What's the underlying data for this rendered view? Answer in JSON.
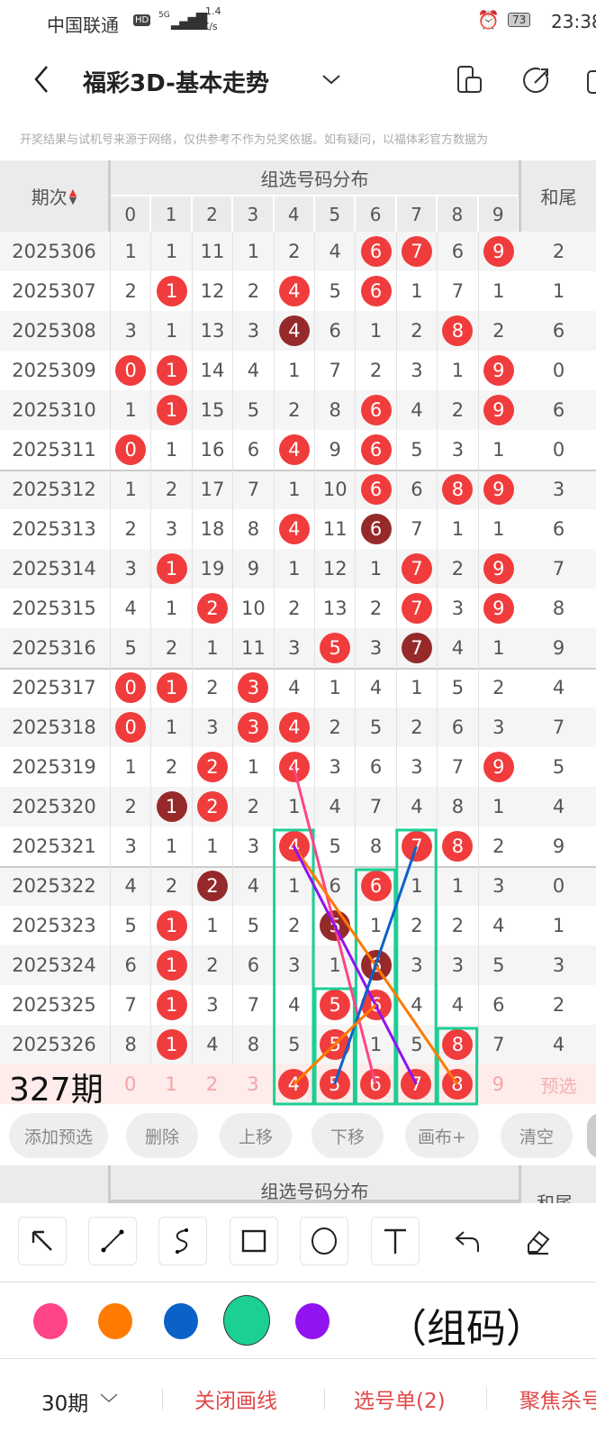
{
  "status_bar": {
    "carrier": "中国联通",
    "hd": "HD",
    "network": "5G",
    "speed": "1.4",
    "speed_unit": "K/s",
    "battery": "73",
    "time": "23:38"
  },
  "header": {
    "title": "福彩3D-基本走势"
  },
  "notice": "开奖结果与试机号来源于网络，仅供参考不作为兑奖依据。如有疑问，以福体彩官方数据为",
  "table": {
    "period_header": "期次",
    "group_header": "组选号码分布",
    "tail_header": "和尾",
    "digits": [
      "0",
      "1",
      "2",
      "3",
      "4",
      "5",
      "6",
      "7",
      "8",
      "9"
    ],
    "rows": [
      {
        "period": "2025306",
        "cells": [
          "1",
          "1",
          "11",
          "1",
          "2",
          "4",
          "6",
          "7",
          "6",
          "9"
        ],
        "marks": [
          "",
          "",
          "",
          "",
          "",
          "",
          "r",
          "r",
          "",
          "r"
        ],
        "tail": "2"
      },
      {
        "period": "2025307",
        "cells": [
          "2",
          "1",
          "12",
          "2",
          "4",
          "5",
          "6",
          "1",
          "7",
          "1"
        ],
        "marks": [
          "",
          "r",
          "",
          "",
          "r",
          "",
          "r",
          "",
          "",
          ""
        ],
        "tail": "1"
      },
      {
        "period": "2025308",
        "cells": [
          "3",
          "1",
          "13",
          "3",
          "4",
          "6",
          "1",
          "2",
          "8",
          "2"
        ],
        "marks": [
          "",
          "",
          "",
          "",
          "d",
          "",
          "",
          "",
          "r",
          ""
        ],
        "tail": "6"
      },
      {
        "period": "2025309",
        "cells": [
          "0",
          "1",
          "14",
          "4",
          "1",
          "7",
          "2",
          "3",
          "1",
          "9"
        ],
        "marks": [
          "r",
          "r",
          "",
          "",
          "",
          "",
          "",
          "",
          "",
          "r"
        ],
        "tail": "0"
      },
      {
        "period": "2025310",
        "cells": [
          "1",
          "1",
          "15",
          "5",
          "2",
          "8",
          "6",
          "4",
          "2",
          "9"
        ],
        "marks": [
          "",
          "r",
          "",
          "",
          "",
          "",
          "r",
          "",
          "",
          "r"
        ],
        "tail": "6"
      },
      {
        "period": "2025311",
        "cells": [
          "0",
          "1",
          "16",
          "6",
          "4",
          "9",
          "6",
          "5",
          "3",
          "1"
        ],
        "marks": [
          "r",
          "",
          "",
          "",
          "r",
          "",
          "r",
          "",
          "",
          ""
        ],
        "tail": "0"
      },
      {
        "period": "2025312",
        "cells": [
          "1",
          "2",
          "17",
          "7",
          "1",
          "10",
          "6",
          "6",
          "8",
          "9"
        ],
        "marks": [
          "",
          "",
          "",
          "",
          "",
          "",
          "r",
          "",
          "r",
          "r"
        ],
        "tail": "3"
      },
      {
        "period": "2025313",
        "cells": [
          "2",
          "3",
          "18",
          "8",
          "4",
          "11",
          "6",
          "7",
          "1",
          "1"
        ],
        "marks": [
          "",
          "",
          "",
          "",
          "r",
          "",
          "d",
          "",
          "",
          ""
        ],
        "tail": "6"
      },
      {
        "period": "2025314",
        "cells": [
          "3",
          "1",
          "19",
          "9",
          "1",
          "12",
          "1",
          "7",
          "2",
          "9"
        ],
        "marks": [
          "",
          "r",
          "",
          "",
          "",
          "",
          "",
          "r",
          "",
          "r"
        ],
        "tail": "7"
      },
      {
        "period": "2025315",
        "cells": [
          "4",
          "1",
          "2",
          "10",
          "2",
          "13",
          "2",
          "7",
          "3",
          "9"
        ],
        "marks": [
          "",
          "",
          "r",
          "",
          "",
          "",
          "",
          "r",
          "",
          "r"
        ],
        "tail": "8"
      },
      {
        "period": "2025316",
        "cells": [
          "5",
          "2",
          "1",
          "11",
          "3",
          "5",
          "3",
          "7",
          "4",
          "1"
        ],
        "marks": [
          "",
          "",
          "",
          "",
          "",
          "r",
          "",
          "d",
          "",
          ""
        ],
        "tail": "9"
      },
      {
        "period": "2025317",
        "cells": [
          "0",
          "1",
          "2",
          "3",
          "4",
          "1",
          "4",
          "1",
          "5",
          "2"
        ],
        "marks": [
          "r",
          "r",
          "",
          "r",
          "",
          "",
          "",
          "",
          "",
          ""
        ],
        "tail": "4"
      },
      {
        "period": "2025318",
        "cells": [
          "0",
          "1",
          "3",
          "3",
          "4",
          "2",
          "5",
          "2",
          "6",
          "3"
        ],
        "marks": [
          "r",
          "",
          "",
          "r",
          "r",
          "",
          "",
          "",
          "",
          ""
        ],
        "tail": "7"
      },
      {
        "period": "2025319",
        "cells": [
          "1",
          "2",
          "2",
          "1",
          "4",
          "3",
          "6",
          "3",
          "7",
          "9"
        ],
        "marks": [
          "",
          "",
          "r",
          "",
          "r",
          "",
          "",
          "",
          "",
          "r"
        ],
        "tail": "5"
      },
      {
        "period": "2025320",
        "cells": [
          "2",
          "1",
          "2",
          "2",
          "1",
          "4",
          "7",
          "4",
          "8",
          "1"
        ],
        "marks": [
          "",
          "d",
          "r",
          "",
          "",
          "",
          "",
          "",
          "",
          ""
        ],
        "tail": "4"
      },
      {
        "period": "2025321",
        "cells": [
          "3",
          "1",
          "1",
          "3",
          "4",
          "5",
          "8",
          "7",
          "8",
          "2"
        ],
        "marks": [
          "",
          "",
          "",
          "",
          "r",
          "",
          "",
          "r",
          "r",
          ""
        ],
        "tail": "9"
      },
      {
        "period": "2025322",
        "cells": [
          "4",
          "2",
          "2",
          "4",
          "1",
          "6",
          "6",
          "1",
          "1",
          "3"
        ],
        "marks": [
          "",
          "",
          "d",
          "",
          "",
          "",
          "r",
          "",
          "",
          ""
        ],
        "tail": "0"
      },
      {
        "period": "2025323",
        "cells": [
          "5",
          "1",
          "1",
          "5",
          "2",
          "5",
          "1",
          "2",
          "2",
          "4"
        ],
        "marks": [
          "",
          "r",
          "",
          "",
          "",
          "d",
          "",
          "",
          "",
          ""
        ],
        "tail": "1"
      },
      {
        "period": "2025324",
        "cells": [
          "6",
          "1",
          "2",
          "6",
          "3",
          "1",
          "6",
          "3",
          "3",
          "5"
        ],
        "marks": [
          "",
          "r",
          "",
          "",
          "",
          "",
          "d",
          "",
          "",
          ""
        ],
        "tail": "3"
      },
      {
        "period": "2025325",
        "cells": [
          "7",
          "1",
          "3",
          "7",
          "4",
          "5",
          "6",
          "4",
          "4",
          "6"
        ],
        "marks": [
          "",
          "r",
          "",
          "",
          "",
          "r",
          "r",
          "",
          "",
          ""
        ],
        "tail": "2"
      },
      {
        "period": "2025326",
        "cells": [
          "8",
          "1",
          "4",
          "8",
          "5",
          "5",
          "1",
          "5",
          "8",
          "7"
        ],
        "marks": [
          "",
          "r",
          "",
          "",
          "",
          "r",
          "",
          "",
          "r",
          ""
        ],
        "tail": "4"
      }
    ],
    "preselect": {
      "label": "预选",
      "overlay": "327期",
      "selected": [
        "4",
        "5",
        "6",
        "7",
        "8"
      ]
    }
  },
  "overlay_text": "（组码）",
  "actions": [
    "添加预选",
    "删除",
    "上移",
    "下移",
    "画布+",
    "清空"
  ],
  "tools": [
    "arrow-tool",
    "line-tool",
    "curve-tool",
    "rectangle-tool",
    "circle-tool",
    "text-tool",
    "undo",
    "eraser"
  ],
  "colors": {
    "pink": "#ff4488",
    "orange": "#ff7a00",
    "blue": "#0a62c8",
    "green": "#1ccf94",
    "purple": "#9013f0",
    "selected": "green",
    "ball": "#f03c3c",
    "ball_double": "#962a2a"
  },
  "bottom_bar": {
    "periods": "30期",
    "close_draw": "关闭画线",
    "selection": "选号单(2)",
    "focus": "聚焦杀号"
  }
}
